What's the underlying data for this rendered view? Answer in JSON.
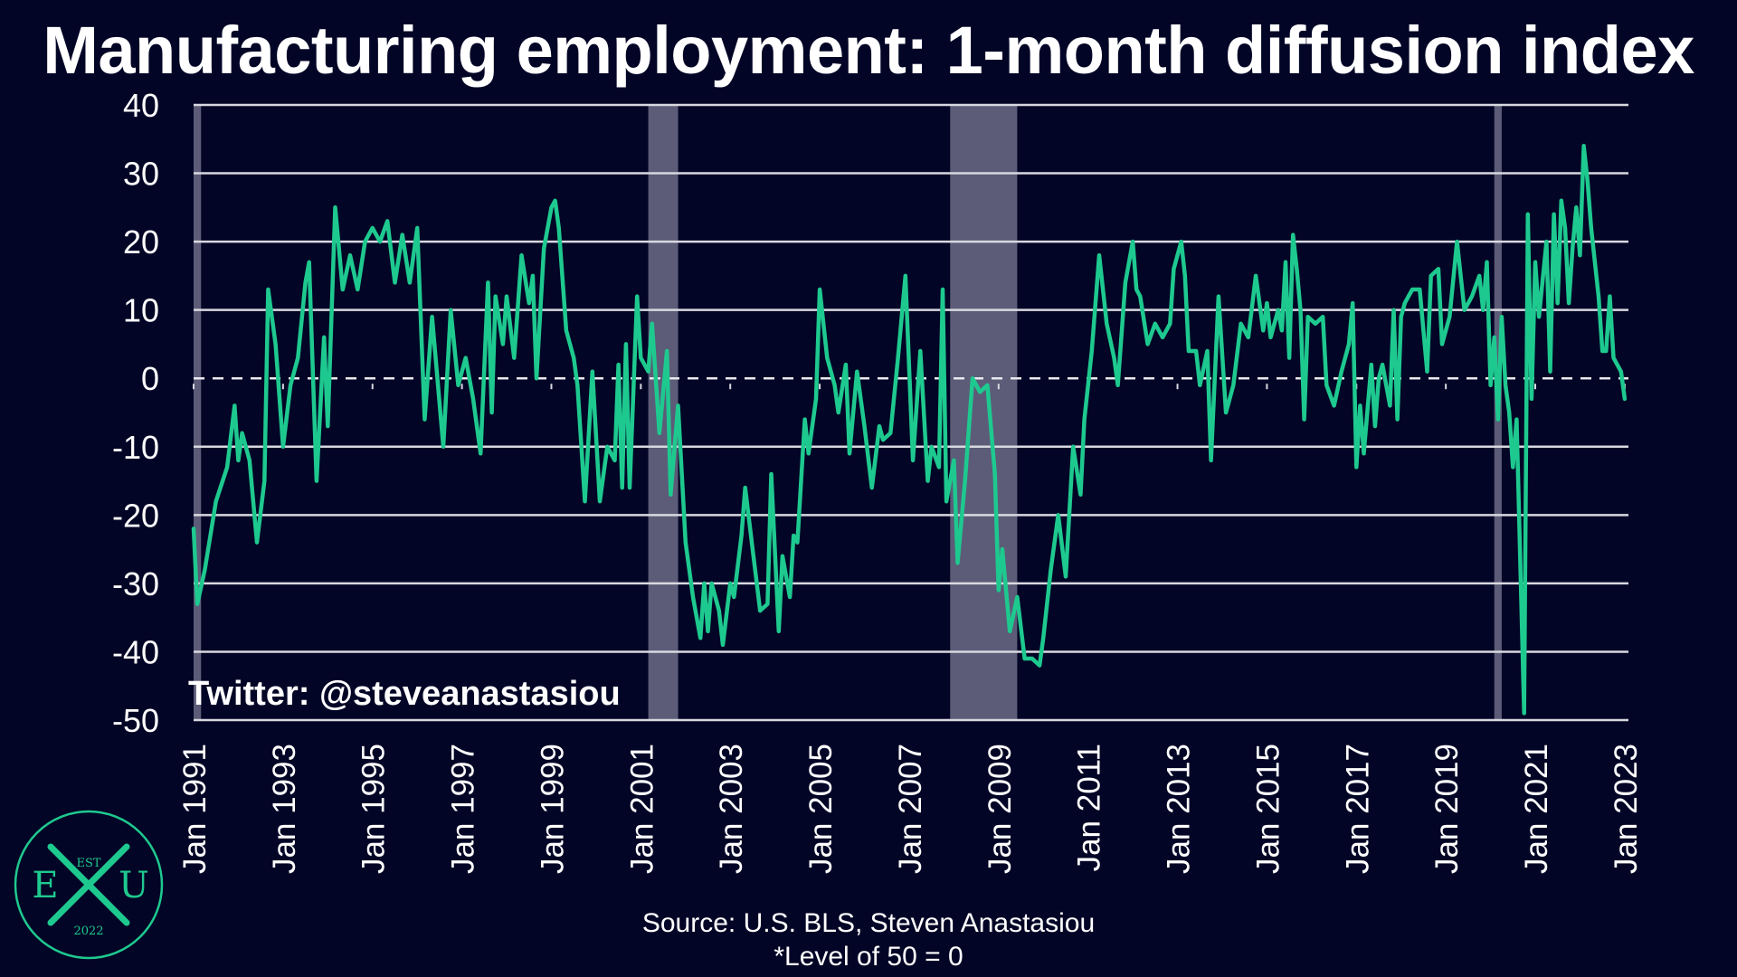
{
  "chart_data": {
    "type": "line",
    "title": "Manufacturing employment: 1-month diffusion index",
    "source": "Source: U.S. BLS, Steven Anastasiou",
    "note": "*Level of 50 = 0",
    "watermark": "Twitter: @steveanastasiou",
    "ylim": [
      -50,
      40
    ],
    "yticks": [
      40,
      30,
      20,
      10,
      0,
      -10,
      -20,
      -30,
      -40,
      -50
    ],
    "xlim": [
      "1991-01",
      "2023-02"
    ],
    "xtick_labels": [
      "Jan 1991",
      "Jan 1993",
      "Jan 1995",
      "Jan 1997",
      "Jan 1999",
      "Jan 2001",
      "Jan 2003",
      "Jan 2005",
      "Jan 2007",
      "Jan 2009",
      "Jan 2011",
      "Jan 2013",
      "Jan 2015",
      "Jan 2017",
      "Jan 2019",
      "Jan 2021",
      "Jan 2023"
    ],
    "grid": true,
    "zero_line": "dashed",
    "line_color": "#1ec98f",
    "recessions": [
      {
        "start": "1991-01",
        "end": "1991-03"
      },
      {
        "start": "2001-03",
        "end": "2001-11"
      },
      {
        "start": "2007-12",
        "end": "2009-06"
      },
      {
        "start": "2020-02",
        "end": "2020-04"
      }
    ],
    "points": [
      [
        "1991-01",
        -22
      ],
      [
        "1991-02",
        -33
      ],
      [
        "1991-04",
        -28
      ],
      [
        "1991-07",
        -18
      ],
      [
        "1991-10",
        -13
      ],
      [
        "1991-12",
        -4
      ],
      [
        "1992-01",
        -12
      ],
      [
        "1992-02",
        -8
      ],
      [
        "1992-04",
        -12
      ],
      [
        "1992-06",
        -24
      ],
      [
        "1992-08",
        -15
      ],
      [
        "1992-09",
        13
      ],
      [
        "1992-11",
        5
      ],
      [
        "1993-01",
        -10
      ],
      [
        "1993-03",
        -1
      ],
      [
        "1993-05",
        3
      ],
      [
        "1993-07",
        14
      ],
      [
        "1993-08",
        17
      ],
      [
        "1993-10",
        -15
      ],
      [
        "1993-12",
        6
      ],
      [
        "1994-01",
        -7
      ],
      [
        "1994-03",
        25
      ],
      [
        "1994-05",
        13
      ],
      [
        "1994-07",
        18
      ],
      [
        "1994-09",
        13
      ],
      [
        "1994-11",
        20
      ],
      [
        "1995-01",
        22
      ],
      [
        "1995-03",
        20
      ],
      [
        "1995-05",
        23
      ],
      [
        "1995-07",
        14
      ],
      [
        "1995-09",
        21
      ],
      [
        "1995-11",
        14
      ],
      [
        "1996-01",
        22
      ],
      [
        "1996-03",
        -6
      ],
      [
        "1996-05",
        9
      ],
      [
        "1996-08",
        -10
      ],
      [
        "1996-10",
        10
      ],
      [
        "1996-12",
        -1
      ],
      [
        "1997-02",
        3
      ],
      [
        "1997-04",
        -3
      ],
      [
        "1997-06",
        -11
      ],
      [
        "1997-08",
        14
      ],
      [
        "1997-09",
        -5
      ],
      [
        "1997-10",
        12
      ],
      [
        "1997-12",
        5
      ],
      [
        "1998-01",
        12
      ],
      [
        "1998-03",
        3
      ],
      [
        "1998-05",
        18
      ],
      [
        "1998-07",
        11
      ],
      [
        "1998-08",
        15
      ],
      [
        "1998-09",
        0
      ],
      [
        "1998-11",
        19
      ],
      [
        "1999-01",
        25
      ],
      [
        "1999-02",
        26
      ],
      [
        "1999-03",
        22
      ],
      [
        "1999-05",
        7
      ],
      [
        "1999-07",
        3
      ],
      [
        "1999-08",
        -1
      ],
      [
        "1999-10",
        -18
      ],
      [
        "1999-12",
        1
      ],
      [
        "2000-02",
        -18
      ],
      [
        "2000-04",
        -10
      ],
      [
        "2000-06",
        -12
      ],
      [
        "2000-07",
        2
      ],
      [
        "2000-08",
        -16
      ],
      [
        "2000-09",
        5
      ],
      [
        "2000-10",
        -16
      ],
      [
        "2000-12",
        12
      ],
      [
        "2001-01",
        3
      ],
      [
        "2001-03",
        1
      ],
      [
        "2001-04",
        8
      ],
      [
        "2001-06",
        -8
      ],
      [
        "2001-08",
        4
      ],
      [
        "2001-09",
        -17
      ],
      [
        "2001-11",
        -4
      ],
      [
        "2002-01",
        -24
      ],
      [
        "2002-03",
        -32
      ],
      [
        "2002-05",
        -38
      ],
      [
        "2002-06",
        -30
      ],
      [
        "2002-07",
        -37
      ],
      [
        "2002-08",
        -30
      ],
      [
        "2002-10",
        -34
      ],
      [
        "2002-11",
        -39
      ],
      [
        "2003-01",
        -30
      ],
      [
        "2003-02",
        -32
      ],
      [
        "2003-04",
        -23
      ],
      [
        "2003-05",
        -16
      ],
      [
        "2003-07",
        -25
      ],
      [
        "2003-09",
        -34
      ],
      [
        "2003-11",
        -33
      ],
      [
        "2003-12",
        -14
      ],
      [
        "2004-02",
        -37
      ],
      [
        "2004-03",
        -26
      ],
      [
        "2004-05",
        -32
      ],
      [
        "2004-06",
        -23
      ],
      [
        "2004-07",
        -24
      ],
      [
        "2004-09",
        -6
      ],
      [
        "2004-10",
        -11
      ],
      [
        "2004-12",
        -3
      ],
      [
        "2005-01",
        13
      ],
      [
        "2005-03",
        3
      ],
      [
        "2005-05",
        -1
      ],
      [
        "2005-06",
        -5
      ],
      [
        "2005-08",
        2
      ],
      [
        "2005-09",
        -11
      ],
      [
        "2005-11",
        1
      ],
      [
        "2006-01",
        -7
      ],
      [
        "2006-03",
        -16
      ],
      [
        "2006-05",
        -7
      ],
      [
        "2006-06",
        -9
      ],
      [
        "2006-08",
        -8
      ],
      [
        "2006-10",
        3
      ],
      [
        "2006-12",
        15
      ],
      [
        "2007-02",
        -12
      ],
      [
        "2007-04",
        4
      ],
      [
        "2007-06",
        -15
      ],
      [
        "2007-07",
        -10
      ],
      [
        "2007-09",
        -13
      ],
      [
        "2007-10",
        13
      ],
      [
        "2007-11",
        -18
      ],
      [
        "2008-01",
        -12
      ],
      [
        "2008-02",
        -27
      ],
      [
        "2008-04",
        -15
      ],
      [
        "2008-06",
        0
      ],
      [
        "2008-08",
        -2
      ],
      [
        "2008-10",
        -1
      ],
      [
        "2008-12",
        -14
      ],
      [
        "2009-01",
        -31
      ],
      [
        "2009-02",
        -25
      ],
      [
        "2009-04",
        -37
      ],
      [
        "2009-06",
        -32
      ],
      [
        "2009-08",
        -41
      ],
      [
        "2009-10",
        -41
      ],
      [
        "2009-12",
        -42
      ],
      [
        "2010-01",
        -38
      ],
      [
        "2010-03",
        -28
      ],
      [
        "2010-05",
        -20
      ],
      [
        "2010-07",
        -29
      ],
      [
        "2010-09",
        -10
      ],
      [
        "2010-11",
        -17
      ],
      [
        "2010-12",
        -6
      ],
      [
        "2011-02",
        4
      ],
      [
        "2011-04",
        18
      ],
      [
        "2011-06",
        8
      ],
      [
        "2011-08",
        3
      ],
      [
        "2011-09",
        -1
      ],
      [
        "2011-11",
        14
      ],
      [
        "2012-01",
        20
      ],
      [
        "2012-02",
        13
      ],
      [
        "2012-03",
        12
      ],
      [
        "2012-05",
        5
      ],
      [
        "2012-07",
        8
      ],
      [
        "2012-09",
        6
      ],
      [
        "2012-11",
        8
      ],
      [
        "2012-12",
        16
      ],
      [
        "2013-02",
        20
      ],
      [
        "2013-03",
        15
      ],
      [
        "2013-04",
        4
      ],
      [
        "2013-06",
        4
      ],
      [
        "2013-07",
        -1
      ],
      [
        "2013-09",
        4
      ],
      [
        "2013-10",
        -12
      ],
      [
        "2013-12",
        12
      ],
      [
        "2014-02",
        -5
      ],
      [
        "2014-04",
        -1
      ],
      [
        "2014-06",
        8
      ],
      [
        "2014-08",
        6
      ],
      [
        "2014-10",
        15
      ],
      [
        "2014-12",
        7
      ],
      [
        "2015-01",
        11
      ],
      [
        "2015-02",
        6
      ],
      [
        "2015-04",
        10
      ],
      [
        "2015-05",
        7
      ],
      [
        "2015-06",
        17
      ],
      [
        "2015-07",
        3
      ],
      [
        "2015-08",
        21
      ],
      [
        "2015-09",
        16
      ],
      [
        "2015-10",
        10
      ],
      [
        "2015-11",
        -6
      ],
      [
        "2015-12",
        9
      ],
      [
        "2016-02",
        8
      ],
      [
        "2016-04",
        9
      ],
      [
        "2016-05",
        -1
      ],
      [
        "2016-07",
        -4
      ],
      [
        "2016-09",
        1
      ],
      [
        "2016-11",
        5
      ],
      [
        "2016-12",
        11
      ],
      [
        "2017-01",
        -13
      ],
      [
        "2017-02",
        -4
      ],
      [
        "2017-03",
        -11
      ],
      [
        "2017-05",
        2
      ],
      [
        "2017-06",
        -7
      ],
      [
        "2017-07",
        0
      ],
      [
        "2017-08",
        2
      ],
      [
        "2017-10",
        -4
      ],
      [
        "2017-11",
        10
      ],
      [
        "2017-12",
        -6
      ],
      [
        "2018-01",
        9
      ],
      [
        "2018-02",
        11
      ],
      [
        "2018-04",
        13
      ],
      [
        "2018-06",
        13
      ],
      [
        "2018-08",
        1
      ],
      [
        "2018-09",
        15
      ],
      [
        "2018-11",
        16
      ],
      [
        "2018-12",
        5
      ],
      [
        "2019-02",
        9
      ],
      [
        "2019-04",
        20
      ],
      [
        "2019-06",
        10
      ],
      [
        "2019-08",
        12
      ],
      [
        "2019-10",
        15
      ],
      [
        "2019-11",
        10
      ],
      [
        "2019-12",
        17
      ],
      [
        "2020-01",
        -1
      ],
      [
        "2020-02",
        6
      ],
      [
        "2020-03",
        -6
      ],
      [
        "2020-04",
        9
      ],
      [
        "2020-05",
        -1
      ],
      [
        "2020-06",
        -5
      ],
      [
        "2020-07",
        -13
      ],
      [
        "2020-08",
        -6
      ],
      [
        "2020-10",
        -49
      ],
      [
        "2020-11",
        24
      ],
      [
        "2020-12",
        -3
      ],
      [
        "2021-01",
        17
      ],
      [
        "2021-02",
        9
      ],
      [
        "2021-04",
        20
      ],
      [
        "2021-05",
        1
      ],
      [
        "2021-06",
        24
      ],
      [
        "2021-07",
        11
      ],
      [
        "2021-08",
        26
      ],
      [
        "2021-09",
        22
      ],
      [
        "2021-10",
        11
      ],
      [
        "2021-11",
        19
      ],
      [
        "2021-12",
        25
      ],
      [
        "2022-01",
        18
      ],
      [
        "2022-02",
        34
      ],
      [
        "2022-03",
        29
      ],
      [
        "2022-04",
        22
      ],
      [
        "2022-05",
        17
      ],
      [
        "2022-06",
        12
      ],
      [
        "2022-07",
        4
      ],
      [
        "2022-08",
        4
      ],
      [
        "2022-09",
        12
      ],
      [
        "2022-10",
        3
      ],
      [
        "2022-12",
        1
      ],
      [
        "2023-01",
        -3
      ]
    ]
  }
}
